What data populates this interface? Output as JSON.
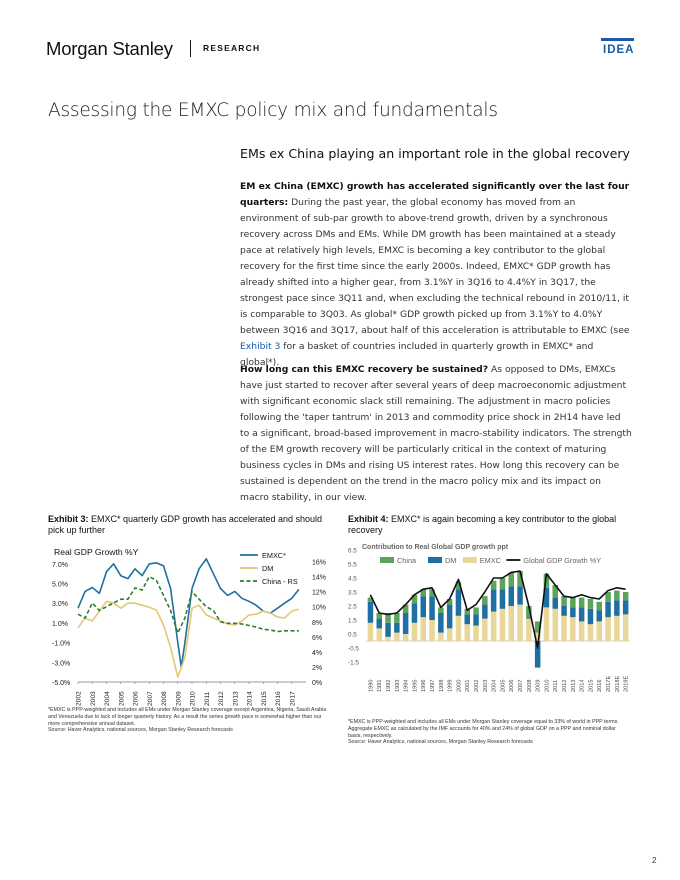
{
  "header": {
    "logo_text": "Morgan Stanley",
    "section_label": "RESEARCH",
    "badge": "IDEA",
    "accent_color": "#1a5aa6"
  },
  "page_title": "Assessing the EMXC policy mix and fundamentals",
  "section_title": "EMs ex China playing an important role in the global recovery",
  "paragraphs": [
    {
      "lead": "EM ex China (EMXC) growth has accelerated significantly over the last four quarters:",
      "text_before_link": " During the past year, the global economy has moved from an environment of sub-par growth to above-trend growth, driven by a synchronous recovery across DMs and EMs. While DM growth has been maintained at a steady pace at relatively high levels, EMXC is becoming a key contributor to the global recovery for the first time since the early 2000s. Indeed, EMXC* GDP growth has already shifted into a higher gear, from 3.1%Y in 3Q16 to 4.4%Y in 3Q17, the strongest pace since 3Q11 and, when excluding the technical rebound in 2010/11, it is comparable to 3Q03. As global* GDP growth picked up from 3.1%Y to 4.0%Y between 3Q16 and 3Q17, about half of this acceleration is attributable to EMXC (see ",
      "link": "Exhibit 3",
      "text_after_link": " for a basket of countries included in quarterly growth in EMXC* and global*)."
    },
    {
      "lead": "How long can this EMXC recovery be sustained?",
      "text": " As opposed to DMs, EMXCs have just started to recover after several years of deep macroeconomic adjustment with significant economic slack still remaining. The adjustment in macro policies following the 'taper tantrum' in 2013 and commodity price shock in 2H14 have led to a significant, broad-based improvement in macro-stability indicators. The strength of the EM growth recovery will be particularly critical in the context of maturing business cycles in DMs and rising US interest rates. How long this recovery can be sustained is dependent on the trend in the macro policy mix and its impact on macro stability, in our view."
    }
  ],
  "exhibit3": {
    "label": "Exhibit 3:",
    "title": "EMXC* quarterly GDP growth has accelerated and should pick up further",
    "footnote": "*EMXC is PPP-weighted and includes all EMs under Morgan Stanley coverage except Argentina, Nigeria, Saudi Arabia and Venezuela due to lack of longer quarterly history. As a result the series growth pace is somewhat higher than our more comprehensive annual dataset.",
    "source": "Source: Haver Analytics, national sources, Morgan Stanley Research forecasts"
  },
  "exhibit4": {
    "label": "Exhibit 4:",
    "title": "EMXC* is again becoming a key contributor to the global recovery",
    "footnote": "*EMXC is PPP-weighted and includes all EMs under Morgan Stanley coverage equal to 33% of world in PPP terms. Aggregate EMXC as calculated by the IMF accounts for 40% and 24% of global GDP on a PPP and nominal dollar basis, respectively.",
    "source": "Source: Haver Analytics, national sources, Morgan Stanley Research forecasts"
  },
  "page_number": "2",
  "chart_data": [
    {
      "type": "line",
      "title": "Real GDP Growth %Y",
      "x": [
        "2002",
        "2003",
        "2004",
        "2005",
        "2006",
        "2007",
        "2008",
        "2009",
        "2010",
        "2011",
        "2012",
        "2013",
        "2014",
        "2015",
        "2016",
        "2017"
      ],
      "x_tick_labels": [
        "2002",
        "2003",
        "2004",
        "2005",
        "2006",
        "2007",
        "2008",
        "2009",
        "2010",
        "2011",
        "2012",
        "2013",
        "2014",
        "2015",
        "2016",
        "2017"
      ],
      "x_range": [
        2002.0,
        2018.0
      ],
      "y_left_ticks": [
        "7.0%",
        "5.0%",
        "3.0%",
        "1.0%",
        "-1.0%",
        "-3.0%",
        "-5.0%"
      ],
      "y_left_range": [
        -5,
        8
      ],
      "y_right_ticks": [
        "16%",
        "14%",
        "12%",
        "10%",
        "8%",
        "6%",
        "4%",
        "2%",
        "0%"
      ],
      "y_right_range": [
        0,
        17
      ],
      "legend_position": "top-right",
      "grid": false,
      "series": [
        {
          "name": "EMXC*",
          "axis": "left",
          "color": "#1f6fa3",
          "style": "solid",
          "x": [
            2002.0,
            2002.5,
            2003.0,
            2003.5,
            2004.0,
            2004.5,
            2005.0,
            2005.5,
            2006.0,
            2006.5,
            2007.0,
            2007.5,
            2008.0,
            2008.5,
            2009.0,
            2009.25,
            2009.5,
            2010.0,
            2010.5,
            2011.0,
            2011.5,
            2012.0,
            2012.5,
            2013.0,
            2013.5,
            2014.0,
            2014.5,
            2015.0,
            2015.5,
            2016.0,
            2016.5,
            2017.0,
            2017.5
          ],
          "values": [
            2.5,
            4.2,
            4.6,
            4.0,
            6.2,
            7.0,
            5.8,
            5.5,
            6.5,
            5.8,
            7.0,
            7.1,
            6.8,
            4.5,
            -1.0,
            -3.5,
            -1.0,
            4.5,
            6.5,
            7.5,
            6.0,
            4.5,
            3.8,
            4.2,
            3.5,
            3.2,
            2.8,
            2.2,
            2.0,
            2.5,
            3.0,
            3.5,
            4.4
          ]
        },
        {
          "name": "DM",
          "axis": "left",
          "color": "#e3c875",
          "style": "solid",
          "x": [
            2002.0,
            2002.5,
            2003.0,
            2003.5,
            2004.0,
            2004.5,
            2005.0,
            2005.5,
            2006.0,
            2006.5,
            2007.0,
            2007.5,
            2008.0,
            2008.5,
            2009.0,
            2009.5,
            2010.0,
            2010.5,
            2011.0,
            2011.5,
            2012.0,
            2012.5,
            2013.0,
            2013.5,
            2014.0,
            2014.5,
            2015.0,
            2015.5,
            2016.0,
            2016.5,
            2017.0,
            2017.5
          ],
          "values": [
            0.5,
            1.5,
            1.2,
            2.2,
            3.2,
            3.0,
            2.5,
            3.0,
            3.0,
            2.8,
            2.6,
            2.3,
            0.8,
            -1.5,
            -4.5,
            -2.5,
            2.5,
            2.8,
            1.8,
            1.5,
            1.2,
            0.9,
            0.8,
            1.2,
            1.8,
            1.9,
            2.2,
            2.0,
            1.6,
            1.5,
            2.2,
            2.4
          ]
        },
        {
          "name": "China - RS",
          "axis": "right",
          "color": "#2e7d32",
          "style": "dashed",
          "x": [
            2002.0,
            2002.5,
            2003.0,
            2003.5,
            2004.0,
            2004.5,
            2005.0,
            2005.5,
            2006.0,
            2006.5,
            2007.0,
            2007.5,
            2008.0,
            2008.5,
            2009.0,
            2009.5,
            2010.0,
            2010.5,
            2011.0,
            2011.5,
            2012.0,
            2012.5,
            2013.0,
            2013.5,
            2014.0,
            2014.5,
            2015.0,
            2015.5,
            2016.0,
            2016.5,
            2017.0,
            2017.5
          ],
          "values": [
            9.0,
            8.5,
            10.5,
            9.5,
            10.0,
            10.5,
            11.0,
            11.0,
            12.5,
            12.2,
            14.0,
            13.5,
            11.5,
            9.5,
            6.5,
            8.5,
            12.0,
            11.0,
            10.0,
            9.5,
            8.0,
            7.8,
            7.8,
            7.7,
            7.5,
            7.3,
            7.0,
            6.9,
            6.7,
            6.8,
            6.8,
            6.8
          ]
        }
      ]
    },
    {
      "type": "bar",
      "title": "Contribution to Real Global GDP growth ppt",
      "categories": [
        "1990",
        "1991",
        "1992",
        "1993",
        "1994",
        "1995",
        "1996",
        "1997",
        "1998",
        "1999",
        "2000",
        "2001",
        "2002",
        "2003",
        "2004",
        "2005",
        "2006",
        "2007",
        "2008",
        "2009",
        "2010",
        "2011",
        "2012",
        "2013",
        "2014",
        "2015",
        "2016",
        "2017E",
        "2018E",
        "2019E"
      ],
      "y_ticks": [
        "6.5",
        "5.5",
        "4.5",
        "3.5",
        "2.5",
        "1.5",
        "0.5",
        "-0.5",
        "-1.5"
      ],
      "ylim": [
        -1.5,
        6.5
      ],
      "legend_position": "top",
      "stacked": true,
      "series": [
        {
          "name": "China",
          "color": "#5aa55a",
          "values": [
            0.3,
            0.4,
            0.7,
            0.7,
            0.6,
            0.6,
            0.5,
            0.5,
            0.4,
            0.4,
            0.5,
            0.4,
            0.5,
            0.6,
            0.6,
            0.8,
            1.0,
            1.1,
            0.8,
            0.8,
            1.0,
            0.9,
            0.7,
            0.7,
            0.7,
            0.7,
            0.6,
            0.7,
            0.7,
            0.6
          ]
        },
        {
          "name": "DM",
          "color": "#1f6fa3",
          "values": [
            1.5,
            0.7,
            1.0,
            0.7,
            1.5,
            1.4,
            1.5,
            1.7,
            1.4,
            1.7,
            1.9,
            0.7,
            0.8,
            1.0,
            1.6,
            1.4,
            1.4,
            1.3,
            0.1,
            -1.9,
            1.4,
            0.8,
            0.7,
            0.7,
            1.0,
            1.1,
            0.8,
            1.1,
            1.1,
            1.0
          ]
        },
        {
          "name": "EMXC",
          "color": "#e9d79a",
          "values": [
            1.3,
            0.9,
            0.3,
            0.6,
            0.5,
            1.3,
            1.7,
            1.5,
            0.6,
            0.9,
            1.8,
            1.2,
            1.1,
            1.6,
            2.1,
            2.3,
            2.5,
            2.6,
            1.6,
            0.6,
            2.4,
            2.3,
            1.8,
            1.7,
            1.4,
            1.2,
            1.4,
            1.7,
            1.8,
            1.9
          ]
        }
      ],
      "line_series": {
        "name": "Global GDP Growth %Y",
        "color": "#111111",
        "values": [
          3.3,
          2.0,
          1.9,
          2.0,
          2.6,
          3.3,
          3.7,
          3.8,
          2.4,
          3.0,
          4.4,
          2.2,
          2.6,
          3.5,
          4.5,
          4.5,
          4.9,
          5.0,
          2.5,
          -0.5,
          4.8,
          4.0,
          3.2,
          3.1,
          3.3,
          3.1,
          3.0,
          3.6,
          3.8,
          3.7
        ]
      }
    }
  ]
}
